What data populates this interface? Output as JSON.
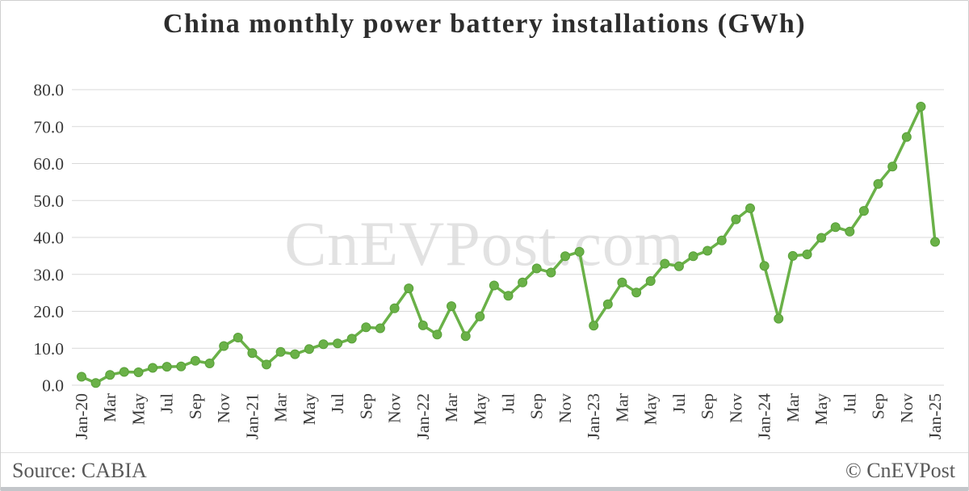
{
  "title": "China monthly power battery installations (GWh)",
  "watermark": "CnEVPost.com",
  "footer": {
    "source": "Source: CABIA",
    "copyright": "© CnEVPost"
  },
  "colors": {
    "background": "#ffffff",
    "border": "#cfcfcf",
    "border_bottom": "#c3c6ca",
    "line": "#6ab148",
    "marker_fill": "#6ab148",
    "marker_stroke": "#58a038",
    "gridline": "#d9d9d9",
    "title_text": "#2d2d2d",
    "axis_text": "#3b3b3b",
    "footer_text": "#595959",
    "watermark_text": "#e2e2e2"
  },
  "chart_data": {
    "type": "line",
    "title": "China monthly power battery installations (GWh)",
    "unit": "GWh",
    "legend": "none",
    "grid": "horizontal",
    "marker": "circle",
    "ylim": [
      0,
      80
    ],
    "y_ticks": [
      0,
      10,
      20,
      30,
      40,
      50,
      60,
      70,
      80
    ],
    "y_tick_format": "one-decimal",
    "x_tick_every": 2,
    "categories": [
      "Jan-20",
      "Feb-20",
      "Mar-20",
      "Apr-20",
      "May-20",
      "Jun-20",
      "Jul-20",
      "Aug-20",
      "Sep-20",
      "Oct-20",
      "Nov-20",
      "Dec-20",
      "Jan-21",
      "Feb-21",
      "Mar-21",
      "Apr-21",
      "May-21",
      "Jun-21",
      "Jul-21",
      "Aug-21",
      "Sep-21",
      "Oct-21",
      "Nov-21",
      "Dec-21",
      "Jan-22",
      "Feb-22",
      "Mar-22",
      "Apr-22",
      "May-22",
      "Jun-22",
      "Jul-22",
      "Aug-22",
      "Sep-22",
      "Oct-22",
      "Nov-22",
      "Dec-22",
      "Jan-23",
      "Feb-23",
      "Mar-23",
      "Apr-23",
      "May-23",
      "Jun-23",
      "Jul-23",
      "Aug-23",
      "Sep-23",
      "Oct-23",
      "Nov-23",
      "Dec-23",
      "Jan-24",
      "Feb-24",
      "Mar-24",
      "Apr-24",
      "May-24",
      "Jun-24",
      "Jul-24",
      "Aug-24",
      "Sep-24",
      "Oct-24",
      "Nov-24",
      "Dec-24",
      "Jan-25"
    ],
    "x_tick_labels": [
      "Jan-20",
      "",
      "Mar",
      "",
      "May",
      "",
      "Jul",
      "",
      "Sep",
      "",
      "Nov",
      "",
      "Jan-21",
      "",
      "Mar",
      "",
      "May",
      "",
      "Jul",
      "",
      "Sep",
      "",
      "Nov",
      "",
      "Jan-22",
      "",
      "Mar",
      "",
      "May",
      "",
      "Jul",
      "",
      "Sep",
      "",
      "Nov",
      "",
      "Jan-23",
      "",
      "Mar",
      "",
      "May",
      "",
      "Jul",
      "",
      "Sep",
      "",
      "Nov",
      "",
      "Jan-24",
      "",
      "Mar",
      "",
      "May",
      "",
      "Jul",
      "",
      "Sep",
      "",
      "Nov",
      "",
      "Jan-25"
    ],
    "values": [
      2.3,
      0.6,
      2.8,
      3.6,
      3.5,
      4.7,
      5.0,
      5.1,
      6.6,
      5.9,
      10.6,
      12.9,
      8.7,
      5.6,
      9.0,
      8.4,
      9.8,
      11.1,
      11.3,
      12.6,
      15.7,
      15.4,
      20.8,
      26.2,
      16.2,
      13.7,
      21.4,
      13.3,
      18.6,
      27.0,
      24.2,
      27.8,
      31.6,
      30.5,
      34.9,
      36.1,
      16.1,
      21.9,
      27.8,
      25.1,
      28.2,
      32.9,
      32.2,
      34.9,
      36.4,
      39.2,
      44.9,
      47.9,
      32.3,
      18.0,
      35.0,
      35.4,
      39.9,
      42.8,
      41.6,
      47.2,
      54.5,
      59.2,
      67.2,
      75.4,
      38.8
    ]
  }
}
